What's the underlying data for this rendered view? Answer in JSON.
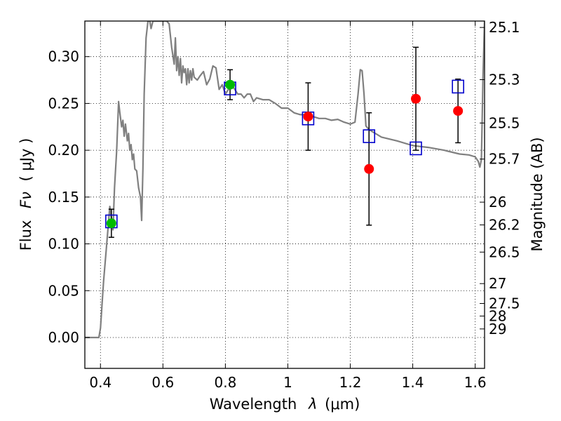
{
  "chart_data": {
    "type": "scatter",
    "xlabel_text": "Wavelength",
    "xlabel_symbol": "λ",
    "xlabel_unit": "(μm)",
    "ylabel_text": "Flux",
    "ylabel_symbol": "Fν",
    "ylabel_unit": "( μJy )",
    "y2label": "Magnitude (AB)",
    "xlim": [
      0.35,
      1.63
    ],
    "ylim": [
      -0.033,
      0.338
    ],
    "grid": true,
    "x_ticks": [
      0.4,
      0.6,
      0.8,
      1.0,
      1.2,
      1.4,
      1.6
    ],
    "x_tick_labels": [
      "0.4",
      "0.6",
      "0.8",
      "1",
      "1.2",
      "1.4",
      "1.6"
    ],
    "y_ticks": [
      0.0,
      0.05,
      0.1,
      0.15,
      0.2,
      0.25,
      0.3
    ],
    "y_tick_labels": [
      "0.00",
      "0.05",
      "0.10",
      "0.15",
      "0.20",
      "0.25",
      "0.30"
    ],
    "mag_ticks": [
      25.1,
      25.3,
      25.5,
      25.7,
      26,
      26.2,
      26.5,
      27,
      27.5,
      28,
      29
    ],
    "mag_tick_labels": [
      "25.1",
      "25.3",
      "25.5",
      "25.7",
      "26",
      "26.2",
      "26.5",
      "27",
      "27.5",
      "28",
      "29"
    ],
    "mag_zero_point_ujy": 3631000000,
    "colors": {
      "model": "#808080",
      "model_photometry": "#0000cc",
      "green_points": "#00bb00",
      "red_points": "#ff0000",
      "errorbars": "#000000"
    },
    "model_spectrum": {
      "x": [
        0.35,
        0.395,
        0.4,
        0.41,
        0.42,
        0.43,
        0.44,
        0.445,
        0.452,
        0.458,
        0.462,
        0.468,
        0.472,
        0.476,
        0.48,
        0.486,
        0.49,
        0.494,
        0.498,
        0.502,
        0.506,
        0.51,
        0.516,
        0.522,
        0.528,
        0.532,
        0.536,
        0.54,
        0.546,
        0.552,
        0.558,
        0.562,
        0.568,
        0.574,
        0.58,
        0.588,
        0.596,
        0.604,
        0.612,
        0.62,
        0.628,
        0.636,
        0.64,
        0.644,
        0.648,
        0.652,
        0.656,
        0.66,
        0.664,
        0.668,
        0.672,
        0.676,
        0.68,
        0.684,
        0.688,
        0.692,
        0.696,
        0.7,
        0.71,
        0.72,
        0.73,
        0.74,
        0.75,
        0.76,
        0.77,
        0.78,
        0.79,
        0.8,
        0.81,
        0.82,
        0.83,
        0.84,
        0.85,
        0.86,
        0.87,
        0.88,
        0.89,
        0.9,
        0.92,
        0.94,
        0.96,
        0.98,
        1.0,
        1.02,
        1.04,
        1.06,
        1.08,
        1.1,
        1.12,
        1.14,
        1.16,
        1.18,
        1.2,
        1.215,
        1.225,
        1.232,
        1.238,
        1.244,
        1.25,
        1.26,
        1.28,
        1.3,
        1.35,
        1.4,
        1.45,
        1.5,
        1.55,
        1.58,
        1.6,
        1.61,
        1.615,
        1.62,
        1.625,
        1.63
      ],
      "y": [
        0.0,
        0.0,
        0.01,
        0.06,
        0.1,
        0.14,
        0.115,
        0.16,
        0.2,
        0.252,
        0.24,
        0.225,
        0.232,
        0.215,
        0.228,
        0.21,
        0.218,
        0.2,
        0.206,
        0.19,
        0.196,
        0.18,
        0.178,
        0.16,
        0.15,
        0.125,
        0.18,
        0.26,
        0.32,
        0.338,
        0.338,
        0.33,
        0.338,
        0.338,
        0.338,
        0.338,
        0.338,
        0.338,
        0.338,
        0.335,
        0.31,
        0.292,
        0.32,
        0.285,
        0.3,
        0.28,
        0.298,
        0.272,
        0.29,
        0.283,
        0.287,
        0.27,
        0.287,
        0.272,
        0.285,
        0.275,
        0.287,
        0.278,
        0.275,
        0.28,
        0.284,
        0.27,
        0.276,
        0.29,
        0.288,
        0.265,
        0.27,
        0.26,
        0.265,
        0.27,
        0.265,
        0.26,
        0.26,
        0.256,
        0.26,
        0.26,
        0.252,
        0.256,
        0.254,
        0.254,
        0.25,
        0.245,
        0.245,
        0.24,
        0.238,
        0.238,
        0.236,
        0.234,
        0.234,
        0.232,
        0.233,
        0.23,
        0.228,
        0.23,
        0.26,
        0.286,
        0.285,
        0.26,
        0.226,
        0.222,
        0.218,
        0.214,
        0.21,
        0.205,
        0.203,
        0.2,
        0.196,
        0.195,
        0.193,
        0.188,
        0.182,
        0.19,
        0.28,
        0.338
      ]
    },
    "model_photometry": {
      "x": [
        0.435,
        0.815,
        1.065,
        1.26,
        1.41,
        1.545
      ],
      "y": [
        0.124,
        0.266,
        0.234,
        0.215,
        0.202,
        0.268
      ]
    },
    "green_points": {
      "x": [
        0.435,
        0.815
      ],
      "y": [
        0.122,
        0.27
      ],
      "yerr": [
        0.015,
        0.016
      ]
    },
    "red_points": {
      "x": [
        1.065,
        1.26,
        1.41,
        1.545
      ],
      "y": [
        0.236,
        0.18,
        0.255,
        0.242
      ],
      "yerr": [
        0.036,
        0.06,
        0.055,
        0.034
      ]
    }
  }
}
